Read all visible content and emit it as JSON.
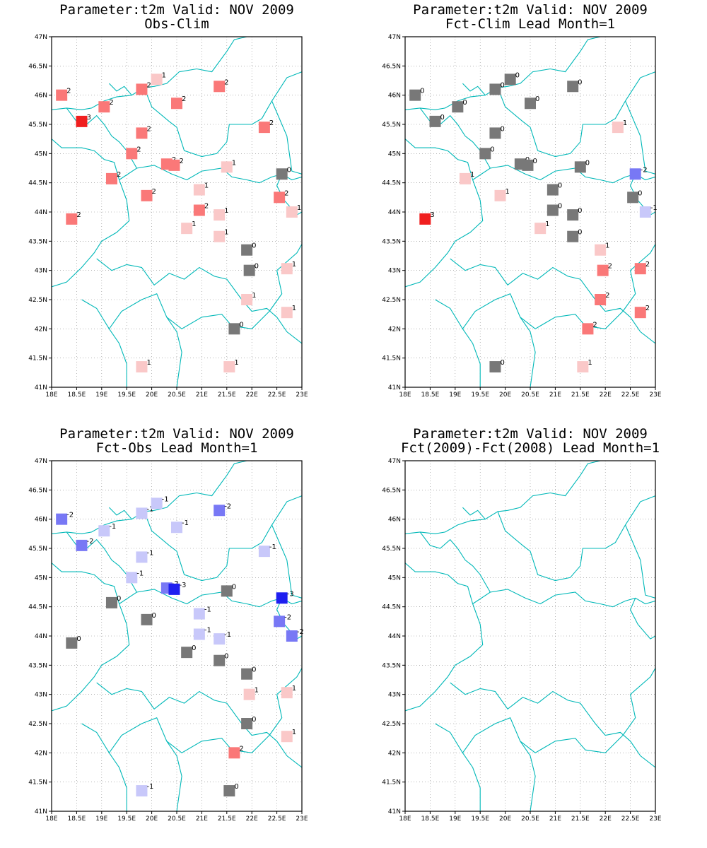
{
  "colors": {
    "coast": "#00b8b8",
    "grid": "#888888",
    "scale": {
      "-3": "#1f1ff0",
      "-2": "#7878f5",
      "-1": "#c8c8fa",
      "0": "#787878",
      "1": "#fac8c8",
      "2": "#fa7878",
      "3": "#f01f1f"
    }
  },
  "axes": {
    "lon": [
      18,
      23
    ],
    "lat": [
      41,
      47
    ],
    "x_ticks": [
      "18E",
      "18.5E",
      "19E",
      "19.5E",
      "20E",
      "20.5E",
      "21E",
      "21.5E",
      "22E",
      "22.5E",
      "23E"
    ],
    "y_ticks": [
      "41N",
      "41.5N",
      "42N",
      "42.5N",
      "43N",
      "43.5N",
      "44N",
      "44.5N",
      "45N",
      "45.5N",
      "46N",
      "46.5N",
      "47N"
    ]
  },
  "stations": [
    [
      18.2,
      46.0
    ],
    [
      18.6,
      45.55
    ],
    [
      19.05,
      45.8
    ],
    [
      19.8,
      46.1
    ],
    [
      20.1,
      46.27
    ],
    [
      20.5,
      45.86
    ],
    [
      21.35,
      46.15
    ],
    [
      19.8,
      45.35
    ],
    [
      19.6,
      45.0
    ],
    [
      20.3,
      44.82
    ],
    [
      20.45,
      44.8
    ],
    [
      22.25,
      45.45
    ],
    [
      19.2,
      44.57
    ],
    [
      19.9,
      44.28
    ],
    [
      20.95,
      44.38
    ],
    [
      20.95,
      44.03
    ],
    [
      18.4,
      43.88
    ],
    [
      21.35,
      43.95
    ],
    [
      20.7,
      43.72
    ],
    [
      21.35,
      43.58
    ],
    [
      21.5,
      44.77
    ],
    [
      22.6,
      44.65
    ],
    [
      22.55,
      44.25
    ],
    [
      22.8,
      44.0
    ],
    [
      21.9,
      43.35
    ],
    [
      21.95,
      43.0
    ],
    [
      22.7,
      43.03
    ],
    [
      21.9,
      42.5
    ],
    [
      22.7,
      42.28
    ],
    [
      21.65,
      42.0
    ],
    [
      19.8,
      41.35
    ],
    [
      21.55,
      41.35
    ]
  ],
  "panels": [
    {
      "title_line1": "Parameter:t2m Valid: NOV 2009",
      "title_line2": "Obs-Clim",
      "values": [
        2,
        3,
        2,
        2,
        1,
        2,
        2,
        2,
        2,
        2,
        2,
        2,
        2,
        2,
        1,
        2,
        2,
        1,
        1,
        1,
        1,
        0,
        2,
        1,
        0,
        0,
        1,
        1,
        1,
        0,
        1,
        1
      ]
    },
    {
      "title_line1": "Parameter:t2m Valid: NOV 2009",
      "title_line2": "Fct-Clim Lead Month=1",
      "values": [
        0,
        0,
        0,
        0,
        0,
        0,
        0,
        0,
        0,
        0,
        0,
        1,
        1,
        1,
        0,
        0,
        3,
        0,
        1,
        0,
        0,
        -2,
        0,
        -1,
        1,
        2,
        2,
        2,
        2,
        2,
        0,
        1
      ]
    },
    {
      "title_line1": "Parameter:t2m Valid: NOV 2009",
      "title_line2": "Fct-Obs Lead Month=1",
      "values": [
        -2,
        -2,
        -1,
        -1,
        -1,
        -1,
        -2,
        -1,
        -1,
        -2,
        -3,
        -1,
        0,
        0,
        -1,
        -1,
        0,
        -1,
        0,
        0,
        0,
        -3,
        -2,
        -2,
        0,
        1,
        1,
        0,
        1,
        2,
        -1,
        0
      ]
    },
    {
      "title_line1": "Parameter:t2m Valid: NOV 2009",
      "title_line2": "Fct(2009)-Fct(2008) Lead Month=1",
      "values": []
    }
  ]
}
